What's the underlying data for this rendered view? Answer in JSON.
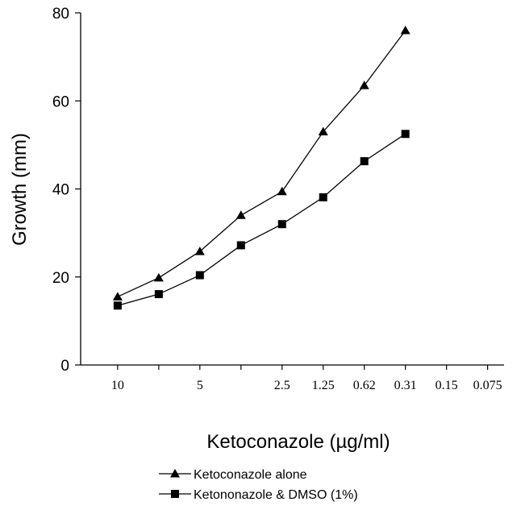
{
  "chart_data": {
    "type": "line",
    "xlabel": "Ketoconazole (µg/ml)",
    "ylabel": "Growth (mm)",
    "ylim": [
      0,
      80
    ],
    "yticks": [
      0,
      20,
      40,
      60,
      80
    ],
    "categories": [
      "10",
      "5",
      "2.5",
      "1.25",
      "0.62",
      "0.31",
      "0.15",
      "0.075"
    ],
    "x_ticklabels": [
      {
        "label": "10",
        "x": 1
      },
      {
        "label": "5",
        "x": 3
      },
      {
        "label": "2.5",
        "x": 5
      },
      {
        "label": "1.25",
        "x": 6
      },
      {
        "label": "0.62",
        "x": 7
      },
      {
        "label": "0.31",
        "x": 8
      },
      {
        "label": "0.15",
        "x": 9
      },
      {
        "label": "0.075",
        "x": 10
      }
    ],
    "xlim": [
      0.1,
      10.4
    ],
    "series": [
      {
        "name": "Ketoconazole alone",
        "marker": "triangle",
        "x": [
          1,
          2,
          3,
          4,
          5,
          6,
          7,
          8
        ],
        "values": [
          15.5,
          19.8,
          25.8,
          34.0,
          39.4,
          53.0,
          63.5,
          76.0
        ]
      },
      {
        "name": "Ketononazole & DMSO (1%)",
        "marker": "square",
        "x": [
          1,
          2,
          3,
          4,
          5,
          6,
          7,
          8
        ],
        "values": [
          13.5,
          16.1,
          20.4,
          27.2,
          32.0,
          38.1,
          46.3,
          52.5
        ]
      }
    ],
    "legend_position": "bottom",
    "grid": false
  }
}
